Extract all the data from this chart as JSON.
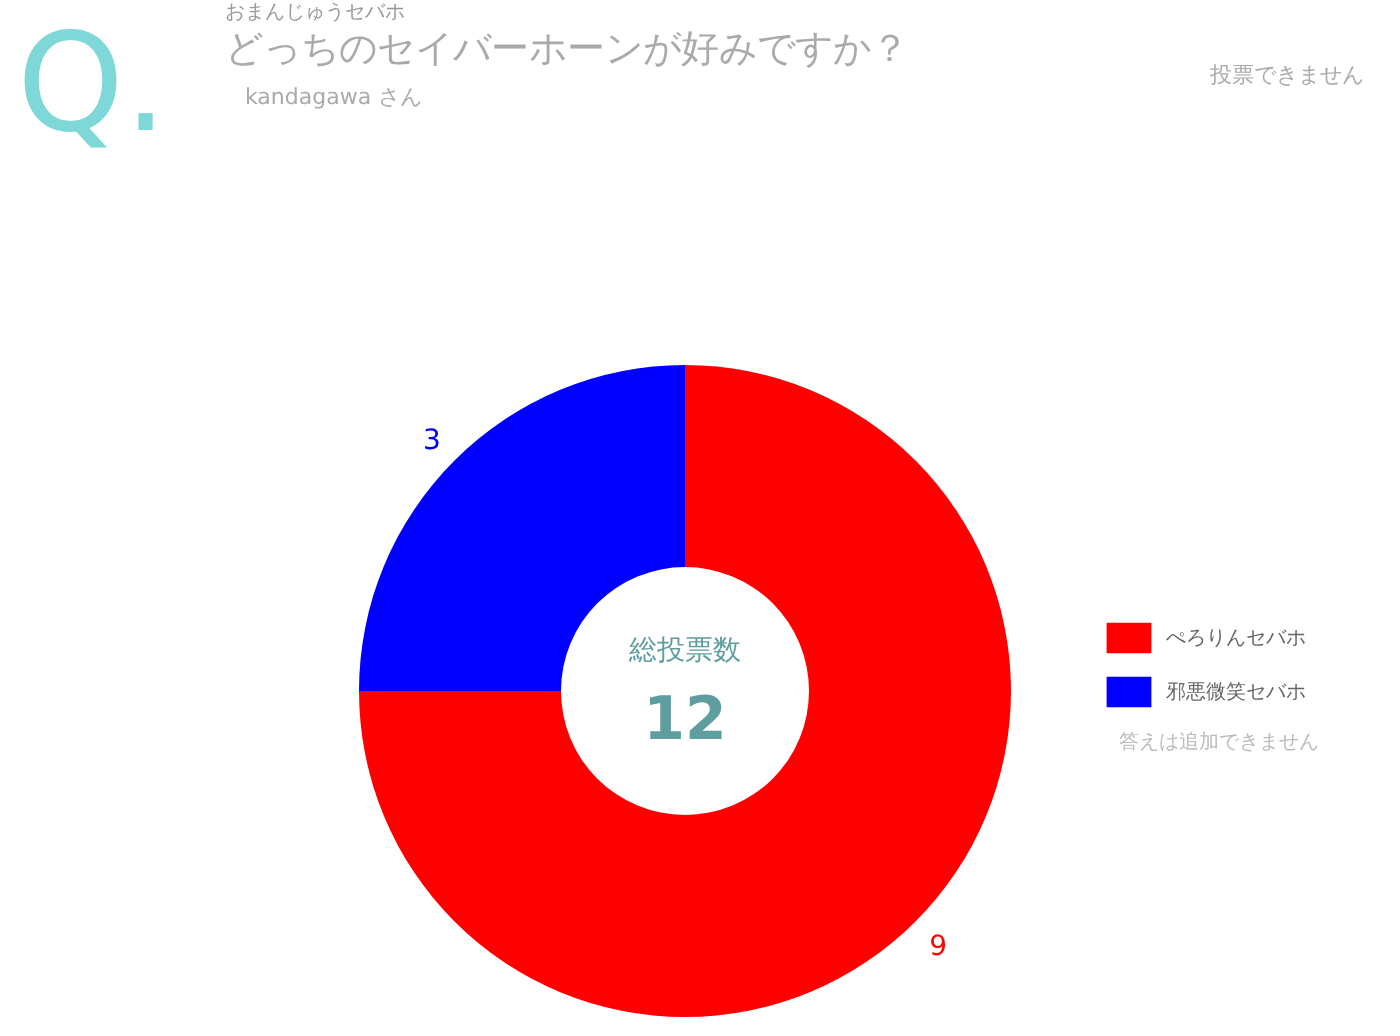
{
  "chart_data": {
    "type": "donut",
    "title": "どっちのセイバーホーンが好みですか？",
    "subtitle": "おまんじゅうセバホ",
    "categories": [
      "ぺろりんセバホ",
      "邪悪微笑セバホ"
    ],
    "values": [
      9,
      3
    ],
    "colors": [
      "#ff0000",
      "#0000ff"
    ],
    "data_labels": true,
    "legend": "right",
    "annotations": [
      "Q.",
      "kandagawa さん",
      "総投票数",
      "12",
      "投票できません",
      "答えは追加できません"
    ]
  }
}
